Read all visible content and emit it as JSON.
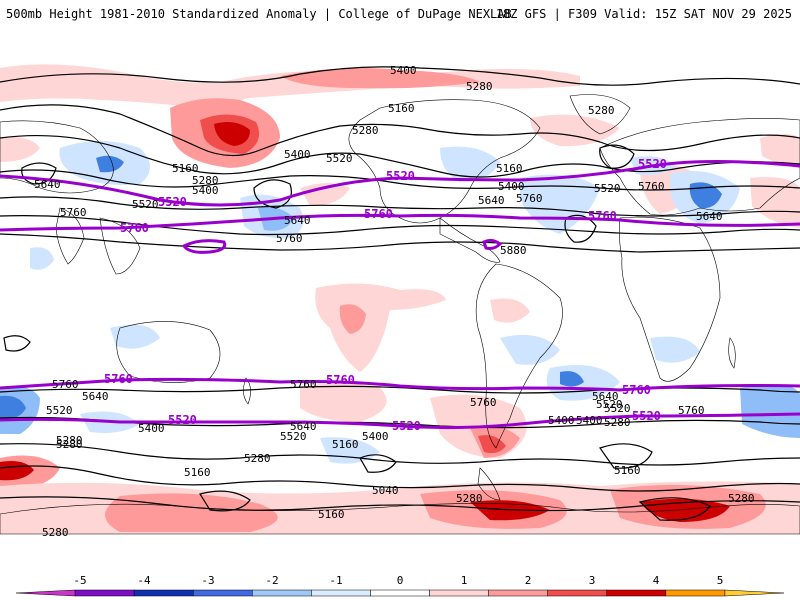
{
  "header": {
    "left_title": "500mb Height 1981-2010 Standardized Anomaly | College of DuPage NEXLAB",
    "right_title": "18Z GFS | F309 Valid: 15Z SAT NOV 29 2025"
  },
  "colors": {
    "contour_black": "#000000",
    "contour_purple": "#9900cc",
    "coastline": "#000000",
    "pos1": "#ffd6d6",
    "pos2": "#ff9a9a",
    "pos3": "#f04d4d",
    "pos4": "#cc0000",
    "neg1": "#cfe4ff",
    "neg2": "#8fbdf7",
    "neg3": "#3f7fe0"
  },
  "contour_labels": {
    "black": [
      "5400",
      "5280",
      "5160",
      "5280",
      "5280",
      "5160",
      "5280",
      "5400",
      "5400",
      "5520",
      "5160",
      "5640",
      "5520",
      "5400",
      "5520",
      "5640",
      "5760",
      "5760",
      "5640",
      "5760",
      "5640",
      "5760",
      "5880",
      "5760",
      "5640",
      "5520",
      "5400",
      "5280",
      "5760",
      "5640",
      "5520",
      "5400",
      "5520",
      "5400",
      "5160",
      "5280",
      "5160",
      "5040",
      "5160",
      "5280",
      "5280",
      "5760",
      "5640",
      "5520",
      "5400",
      "5280",
      "5760",
      "5160",
      "5280",
      "5280"
    ],
    "purple": [
      "5520",
      "5520",
      "5520",
      "5760",
      "5760",
      "5760",
      "5760",
      "5760",
      "5760",
      "5520",
      "5520",
      "5520"
    ]
  },
  "legend": {
    "ticks": [
      "-5",
      "-4",
      "-3",
      "-2",
      "-1",
      "0",
      "1",
      "2",
      "3",
      "4",
      "5"
    ],
    "colors": [
      "#cc33cc",
      "#7b0fc4",
      "#1030b0",
      "#4169e1",
      "#9fc8f7",
      "#d9ebff",
      "#ffffff",
      "#ffd6d6",
      "#ff9a9a",
      "#f04d4d",
      "#cc0000",
      "#ff9900",
      "#ffcc33"
    ]
  }
}
